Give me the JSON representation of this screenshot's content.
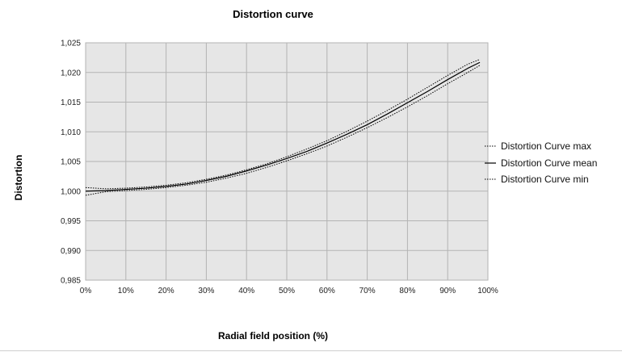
{
  "chart_data": {
    "type": "line",
    "title": "Distortion curve",
    "xlabel": "Radial field position (%)",
    "ylabel": "Distortion",
    "xlim": [
      0,
      100
    ],
    "ylim": [
      0.985,
      1.025
    ],
    "x_tick_labels": [
      "0%",
      "10%",
      "20%",
      "30%",
      "40%",
      "50%",
      "60%",
      "70%",
      "80%",
      "90%",
      "100%"
    ],
    "y_tick_labels": [
      "0,985",
      "0,990",
      "0,995",
      "1,000",
      "1,005",
      "1,010",
      "1,015",
      "1,020",
      "1,025"
    ],
    "grid": true,
    "legend_position": "right",
    "x": [
      0,
      5,
      10,
      15,
      20,
      25,
      30,
      35,
      40,
      45,
      50,
      55,
      60,
      65,
      70,
      75,
      80,
      85,
      90,
      95,
      98
    ],
    "series": [
      {
        "name": "Distortion Curve max",
        "style": "dotted",
        "values": [
          1.0006,
          1.0004,
          1.0005,
          1.0007,
          1.001,
          1.0014,
          1.002,
          1.0027,
          1.0036,
          1.0046,
          1.0058,
          1.0071,
          1.0085,
          1.0101,
          1.0118,
          1.0136,
          1.0155,
          1.0175,
          1.0195,
          1.0214,
          1.0222
        ]
      },
      {
        "name": "Distortion Curve mean",
        "style": "solid",
        "values": [
          1.0,
          1.0001,
          1.0003,
          1.0005,
          1.0008,
          1.0012,
          1.0018,
          1.0025,
          1.0034,
          1.0044,
          1.0055,
          1.0067,
          1.0081,
          1.0096,
          1.0112,
          1.013,
          1.0149,
          1.0168,
          1.0188,
          1.0207,
          1.0217
        ]
      },
      {
        "name": "Distortion Curve min",
        "style": "dotted",
        "values": [
          0.9993,
          0.9999,
          1.0001,
          1.0003,
          1.0006,
          1.001,
          1.0015,
          1.0022,
          1.003,
          1.004,
          1.0051,
          1.0063,
          1.0076,
          1.0091,
          1.0107,
          1.0124,
          1.0142,
          1.0161,
          1.0181,
          1.02,
          1.0212
        ]
      }
    ],
    "colors": {
      "plot_background": "#e6e6e6",
      "grid": "#b3b3b3",
      "line": "#000000"
    }
  }
}
